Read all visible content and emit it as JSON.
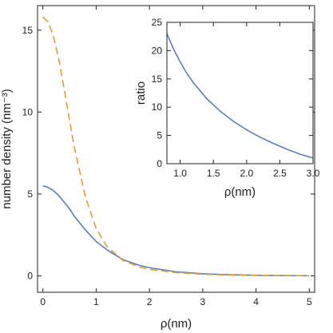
{
  "chart_data": [
    {
      "type": "line",
      "xlabel": "ρ(nm)",
      "ylabel": "number density (nm⁻³)",
      "xlim": [
        -0.1,
        5.1
      ],
      "ylim": [
        -1,
        16.5
      ],
      "xticks": [
        0,
        1,
        2,
        3,
        4,
        5
      ],
      "yticks": [
        0,
        5,
        10,
        15
      ],
      "grid": false,
      "legend": "none",
      "series": [
        {
          "color": "#5b7fb9",
          "style": "solid",
          "x": [
            0,
            0.1,
            0.2,
            0.3,
            0.4,
            0.5,
            0.6,
            0.8,
            1.0,
            1.2,
            1.5,
            1.8,
            2.0,
            2.5,
            3.0,
            3.5,
            4.0,
            4.5,
            5.0
          ],
          "y": [
            5.5,
            5.4,
            5.2,
            4.9,
            4.5,
            4.1,
            3.6,
            2.8,
            2.1,
            1.6,
            1.0,
            0.65,
            0.5,
            0.25,
            0.13,
            0.07,
            0.04,
            0.02,
            0.01
          ]
        },
        {
          "color": "#e0a02a",
          "style": "dashed",
          "x": [
            0,
            0.1,
            0.2,
            0.3,
            0.4,
            0.5,
            0.6,
            0.8,
            1.0,
            1.2,
            1.5,
            1.8,
            2.0,
            2.5,
            3.0,
            3.5,
            4.0,
            4.5,
            5.0
          ],
          "y": [
            15.8,
            15.5,
            14.6,
            13.2,
            11.4,
            9.5,
            7.7,
            4.8,
            2.9,
            1.8,
            0.95,
            0.55,
            0.4,
            0.2,
            0.1,
            0.05,
            0.03,
            0.02,
            0.01
          ]
        }
      ]
    },
    {
      "type": "line",
      "xlabel": "ρ(nm)",
      "ylabel": "ratio",
      "xlim": [
        0.8,
        3.0
      ],
      "ylim": [
        0,
        25
      ],
      "xticks": [
        1.0,
        1.5,
        2.0,
        2.5,
        3.0
      ],
      "xtick_labels": [
        "1.0",
        "1.5",
        "2.0",
        "2.5",
        "3.0"
      ],
      "yticks": [
        0,
        5,
        10,
        15,
        20,
        25
      ],
      "grid": false,
      "legend": "none",
      "series": [
        {
          "color": "#5b7fb9",
          "style": "solid",
          "x": [
            0.8,
            0.9,
            1.0,
            1.1,
            1.2,
            1.4,
            1.6,
            1.8,
            2.0,
            2.2,
            2.4,
            2.6,
            2.8,
            3.0
          ],
          "y": [
            23.0,
            20.3,
            18.0,
            16.0,
            14.3,
            11.5,
            9.3,
            7.5,
            6.0,
            4.7,
            3.6,
            2.6,
            1.7,
            1.0
          ]
        }
      ]
    }
  ]
}
